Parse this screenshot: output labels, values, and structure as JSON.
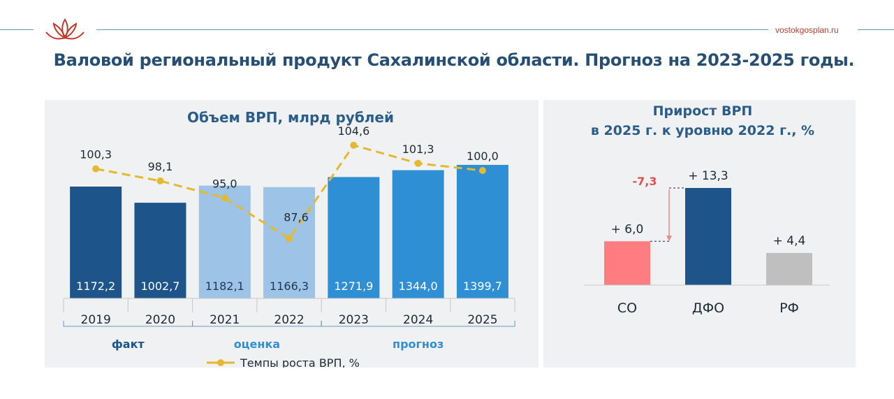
{
  "header": {
    "site": "vostokgosplan.ru",
    "title": "Валовой региональный продукт Сахалинской области. Прогноз на 2023-2025 годы."
  },
  "chart_data": [
    {
      "type": "bar",
      "title": "Объем ВРП, млрд рублей",
      "categories": [
        "2019",
        "2020",
        "2021",
        "2022",
        "2023",
        "2024",
        "2025"
      ],
      "series": [
        {
          "type": "bar",
          "values": [
            1172.2,
            1002.7,
            1182.1,
            1166.3,
            1271.9,
            1344.0,
            1399.7
          ],
          "labels": [
            "1172,2",
            "1002,7",
            "1182,1",
            "1166,3",
            "1271,9",
            "1344,0",
            "1399,7"
          ],
          "colors": [
            "#1d5489",
            "#1d5489",
            "#9dc3e6",
            "#9dc3e6",
            "#2f8fd4",
            "#2f8fd4",
            "#2f8fd4"
          ]
        },
        {
          "type": "line",
          "name": "Темпы роста ВРП, %",
          "values": [
            100.3,
            98.1,
            95.0,
            87.6,
            104.6,
            101.3,
            100.0
          ],
          "labels": [
            "100,3",
            "98,1",
            "95,0",
            "87,6",
            "104,6",
            "101,3",
            "100,0"
          ],
          "color": "#e5b92f"
        }
      ],
      "groups": [
        {
          "label": "факт",
          "from": 0,
          "to": 1,
          "color": "#1d5489"
        },
        {
          "label": "оценка",
          "from": 2,
          "to": 3,
          "color": "#2f8fd4"
        },
        {
          "label": "прогноз",
          "from": 4,
          "to": 6,
          "color": "#2f8fd4"
        }
      ],
      "legend": {
        "label": "Темпы роста ВРП, %",
        "position": "bottom"
      }
    },
    {
      "type": "bar",
      "title": [
        "Прирост ВРП",
        "в 2025 г. к уровню 2022 г., %"
      ],
      "categories": [
        "СО",
        "ДФО",
        "РФ"
      ],
      "values": [
        6.0,
        13.3,
        4.4
      ],
      "labels": [
        "+ 6,0",
        "+ 13,3",
        "+ 4,4"
      ],
      "colors": [
        "#ff7c80",
        "#1d5489",
        "#bfbfbf"
      ],
      "annotation": {
        "label": "-7,3",
        "value": -7.3,
        "from": "СО",
        "to": "ДФО",
        "color": "#e05050"
      }
    }
  ]
}
